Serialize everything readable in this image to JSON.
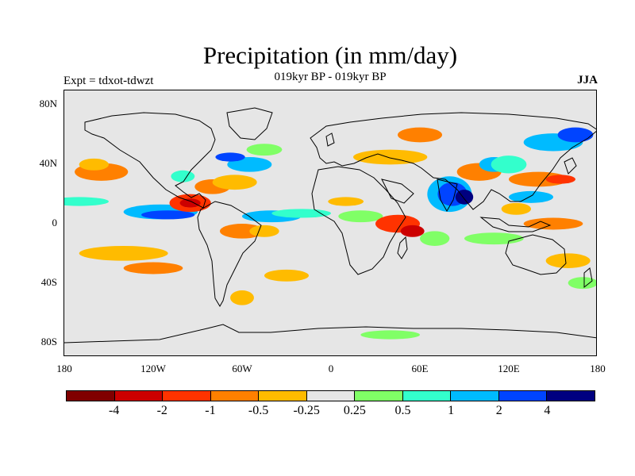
{
  "title": "Precipitation (in mm/day)",
  "subtitle_center": "019kyr BP - 019kyr BP",
  "subtitle_left": "Expt = tdxot-tdwzt",
  "subtitle_right": "JJA",
  "map": {
    "projection": "cylindrical-equidistant",
    "lon_range": [
      -180,
      180
    ],
    "lat_range": [
      -90,
      90
    ],
    "background_color": "#e6e6e6",
    "land_outline_color": "#000000"
  },
  "y_ticks": [
    "80N",
    "40N",
    "0",
    "40S",
    "80S"
  ],
  "y_tick_lats": [
    80,
    40,
    0,
    -40,
    -80
  ],
  "x_ticks": [
    "180",
    "120W",
    "60W",
    "0",
    "60E",
    "120E",
    "180"
  ],
  "x_tick_lons": [
    -180,
    -120,
    -60,
    0,
    60,
    120,
    180
  ],
  "colorbar": {
    "colors": [
      "#800000",
      "#cc0000",
      "#ff3300",
      "#ff8000",
      "#ffbb00",
      "#e6e6e6",
      "#80ff66",
      "#33ffcc",
      "#00bbff",
      "#0044ff",
      "#000080"
    ],
    "labels": [
      "-4",
      "-2",
      "-1",
      "-0.5",
      "-0.25",
      "0.25",
      "0.5",
      "1",
      "2",
      "4"
    ],
    "levels": [
      -4,
      -2,
      -1,
      -0.5,
      -0.25,
      0.25,
      0.5,
      1,
      2,
      4
    ]
  },
  "anomaly_blobs": [
    {
      "lon": -155,
      "lat": 35,
      "rx": 18,
      "ry": 6,
      "level": 3
    },
    {
      "lon": -160,
      "lat": 40,
      "rx": 10,
      "ry": 4,
      "level": 4
    },
    {
      "lon": -170,
      "lat": 15,
      "rx": 20,
      "ry": 3,
      "level": 7
    },
    {
      "lon": -115,
      "lat": 8,
      "rx": 25,
      "ry": 5,
      "level": 8
    },
    {
      "lon": -110,
      "lat": 6,
      "rx": 18,
      "ry": 3,
      "level": 9
    },
    {
      "lon": -95,
      "lat": 14,
      "rx": 14,
      "ry": 6,
      "level": 2
    },
    {
      "lon": -95,
      "lat": 14,
      "rx": 7,
      "ry": 3,
      "level": 1
    },
    {
      "lon": -80,
      "lat": 25,
      "rx": 12,
      "ry": 5,
      "level": 3
    },
    {
      "lon": -65,
      "lat": 28,
      "rx": 15,
      "ry": 5,
      "level": 4
    },
    {
      "lon": -55,
      "lat": 40,
      "rx": 15,
      "ry": 5,
      "level": 8
    },
    {
      "lon": -68,
      "lat": 45,
      "rx": 10,
      "ry": 3,
      "level": 9
    },
    {
      "lon": -45,
      "lat": 50,
      "rx": 12,
      "ry": 4,
      "level": 6
    },
    {
      "lon": -100,
      "lat": 32,
      "rx": 8,
      "ry": 4,
      "level": 7
    },
    {
      "lon": -40,
      "lat": 5,
      "rx": 20,
      "ry": 4,
      "level": 8
    },
    {
      "lon": -20,
      "lat": 7,
      "rx": 20,
      "ry": 3,
      "level": 7
    },
    {
      "lon": -60,
      "lat": -5,
      "rx": 15,
      "ry": 5,
      "level": 3
    },
    {
      "lon": -45,
      "lat": -5,
      "rx": 10,
      "ry": 4,
      "level": 4
    },
    {
      "lon": -140,
      "lat": -20,
      "rx": 30,
      "ry": 5,
      "level": 4
    },
    {
      "lon": -120,
      "lat": -30,
      "rx": 20,
      "ry": 4,
      "level": 3
    },
    {
      "lon": -60,
      "lat": -50,
      "rx": 8,
      "ry": 5,
      "level": 4
    },
    {
      "lon": -30,
      "lat": -35,
      "rx": 15,
      "ry": 4,
      "level": 4
    },
    {
      "lon": 10,
      "lat": 15,
      "rx": 12,
      "ry": 3,
      "level": 4
    },
    {
      "lon": 20,
      "lat": 5,
      "rx": 15,
      "ry": 4,
      "level": 6
    },
    {
      "lon": 40,
      "lat": 45,
      "rx": 25,
      "ry": 5,
      "level": 4
    },
    {
      "lon": 60,
      "lat": 60,
      "rx": 15,
      "ry": 5,
      "level": 3
    },
    {
      "lon": 45,
      "lat": 0,
      "rx": 15,
      "ry": 6,
      "level": 2
    },
    {
      "lon": 55,
      "lat": -5,
      "rx": 8,
      "ry": 4,
      "level": 1
    },
    {
      "lon": 70,
      "lat": -10,
      "rx": 10,
      "ry": 5,
      "level": 6
    },
    {
      "lon": 80,
      "lat": 20,
      "rx": 15,
      "ry": 12,
      "level": 8
    },
    {
      "lon": 82,
      "lat": 20,
      "rx": 10,
      "ry": 8,
      "level": 9
    },
    {
      "lon": 90,
      "lat": 18,
      "rx": 6,
      "ry": 5,
      "level": 10
    },
    {
      "lon": 100,
      "lat": 35,
      "rx": 15,
      "ry": 6,
      "level": 3
    },
    {
      "lon": 110,
      "lat": 40,
      "rx": 10,
      "ry": 5,
      "level": 8
    },
    {
      "lon": 120,
      "lat": 40,
      "rx": 12,
      "ry": 6,
      "level": 7
    },
    {
      "lon": 140,
      "lat": 30,
      "rx": 20,
      "ry": 5,
      "level": 3
    },
    {
      "lon": 155,
      "lat": 30,
      "rx": 10,
      "ry": 3,
      "level": 2
    },
    {
      "lon": 135,
      "lat": 18,
      "rx": 15,
      "ry": 4,
      "level": 8
    },
    {
      "lon": 125,
      "lat": 10,
      "rx": 10,
      "ry": 4,
      "level": 4
    },
    {
      "lon": 150,
      "lat": 0,
      "rx": 20,
      "ry": 4,
      "level": 3
    },
    {
      "lon": 110,
      "lat": -10,
      "rx": 20,
      "ry": 4,
      "level": 6
    },
    {
      "lon": 160,
      "lat": -25,
      "rx": 15,
      "ry": 5,
      "level": 4
    },
    {
      "lon": 170,
      "lat": -40,
      "rx": 10,
      "ry": 4,
      "level": 6
    },
    {
      "lon": 150,
      "lat": 55,
      "rx": 20,
      "ry": 6,
      "level": 8
    },
    {
      "lon": 165,
      "lat": 60,
      "rx": 12,
      "ry": 5,
      "level": 9
    },
    {
      "lon": 40,
      "lat": -75,
      "rx": 20,
      "ry": 3,
      "level": 6
    }
  ]
}
